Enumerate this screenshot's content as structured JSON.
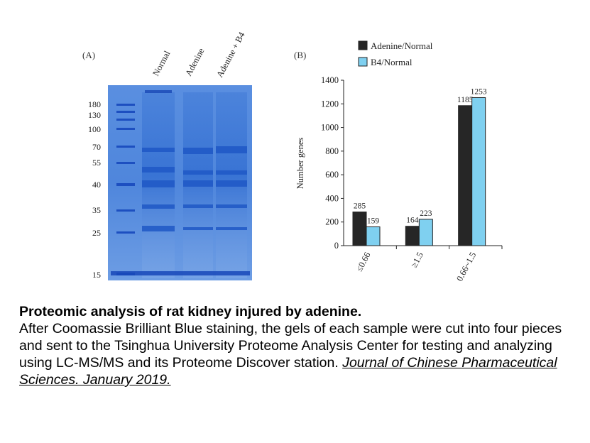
{
  "figure": {
    "panel_a_label": "(A)",
    "panel_b_label": "(B)",
    "gel": {
      "lane_labels": [
        "Normal",
        "Adenine",
        "Adenine + B4"
      ],
      "markers": [
        "180",
        "130",
        "100",
        "70",
        "55",
        "40",
        "35",
        "25",
        "15"
      ]
    }
  },
  "chart_data": {
    "type": "bar",
    "categories": [
      "≤0.66",
      "≥1.5",
      "0.66~1.5"
    ],
    "series": [
      {
        "name": "Adenine/Normal",
        "values": [
          285,
          164,
          1185
        ],
        "color": "#262626"
      },
      {
        "name": "B4/Normal",
        "values": [
          159,
          223,
          1253
        ],
        "color": "#7fd0f0"
      }
    ],
    "ylabel": "Number genes",
    "yticks": [
      "0",
      "200",
      "400",
      "600",
      "800",
      "1000",
      "1200",
      "1400"
    ],
    "ylim": [
      0,
      1400
    ],
    "legend_position": "top",
    "grid": false
  },
  "caption": {
    "title": "Proteomic analysis of rat kidney injured by adenine.",
    "body": "After Coomassie Brilliant Blue staining, the gels of each sample were cut into four pieces and sent to the Tsinghua University Proteome Analysis Center for testing and analyzing using LC-MS/MS and its Proteome Discover station.",
    "citation": "Journal of Chinese Pharmaceutical Sciences. January 2019."
  }
}
